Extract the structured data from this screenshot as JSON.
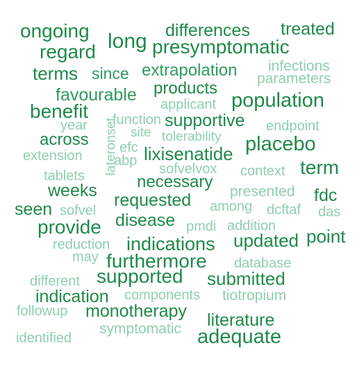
{
  "words": [
    {
      "text": "ongoing",
      "tone": "dark"
    },
    {
      "text": "differences",
      "tone": "dark"
    },
    {
      "text": "treated",
      "tone": "dark"
    },
    {
      "text": "long",
      "tone": "dark"
    },
    {
      "text": "regard",
      "tone": "dark"
    },
    {
      "text": "presymptomatic",
      "tone": "dark"
    },
    {
      "text": "infections",
      "tone": "light"
    },
    {
      "text": "terms",
      "tone": "dark"
    },
    {
      "text": "since",
      "tone": "dark"
    },
    {
      "text": "extrapolation",
      "tone": "dark"
    },
    {
      "text": "parameters",
      "tone": "light"
    },
    {
      "text": "favourable",
      "tone": "dark"
    },
    {
      "text": "products",
      "tone": "dark"
    },
    {
      "text": "applicant",
      "tone": "light"
    },
    {
      "text": "population",
      "tone": "dark"
    },
    {
      "text": "benefit",
      "tone": "dark"
    },
    {
      "text": "function",
      "tone": "light"
    },
    {
      "text": "year",
      "tone": "light"
    },
    {
      "text": "supportive",
      "tone": "dark"
    },
    {
      "text": "endpoint",
      "tone": "light"
    },
    {
      "text": "lateronset",
      "tone": "light"
    },
    {
      "text": "site",
      "tone": "light"
    },
    {
      "text": "tolerability",
      "tone": "light"
    },
    {
      "text": "across",
      "tone": "dark"
    },
    {
      "text": "placebo",
      "tone": "dark"
    },
    {
      "text": "efc",
      "tone": "light"
    },
    {
      "text": "extension",
      "tone": "light"
    },
    {
      "text": "lixisenatide",
      "tone": "dark"
    },
    {
      "text": "abp",
      "tone": "light"
    },
    {
      "text": "term",
      "tone": "dark"
    },
    {
      "text": "sofvelvox",
      "tone": "light"
    },
    {
      "text": "context",
      "tone": "light"
    },
    {
      "text": "tablets",
      "tone": "light"
    },
    {
      "text": "necessary",
      "tone": "dark"
    },
    {
      "text": "weeks",
      "tone": "dark"
    },
    {
      "text": "presented",
      "tone": "light"
    },
    {
      "text": "fdc",
      "tone": "dark"
    },
    {
      "text": "requested",
      "tone": "dark"
    },
    {
      "text": "among",
      "tone": "light"
    },
    {
      "text": "seen",
      "tone": "dark"
    },
    {
      "text": "sofvel",
      "tone": "light"
    },
    {
      "text": "dcftaf",
      "tone": "light"
    },
    {
      "text": "das",
      "tone": "light"
    },
    {
      "text": "disease",
      "tone": "dark"
    },
    {
      "text": "provide",
      "tone": "dark"
    },
    {
      "text": "pmdi",
      "tone": "light"
    },
    {
      "text": "addition",
      "tone": "light"
    },
    {
      "text": "point",
      "tone": "dark"
    },
    {
      "text": "updated",
      "tone": "dark"
    },
    {
      "text": "indications",
      "tone": "dark"
    },
    {
      "text": "reduction",
      "tone": "light"
    },
    {
      "text": "may",
      "tone": "light"
    },
    {
      "text": "furthermore",
      "tone": "dark"
    },
    {
      "text": "database",
      "tone": "light"
    },
    {
      "text": "different",
      "tone": "light"
    },
    {
      "text": "supported",
      "tone": "dark"
    },
    {
      "text": "submitted",
      "tone": "dark"
    },
    {
      "text": "indication",
      "tone": "dark"
    },
    {
      "text": "components",
      "tone": "light"
    },
    {
      "text": "tiotropium",
      "tone": "light"
    },
    {
      "text": "followup",
      "tone": "light"
    },
    {
      "text": "monotherapy",
      "tone": "dark"
    },
    {
      "text": "literature",
      "tone": "dark"
    },
    {
      "text": "symptomatic",
      "tone": "light"
    },
    {
      "text": "identified",
      "tone": "light"
    },
    {
      "text": "adequate",
      "tone": "dark"
    }
  ],
  "colors": {
    "dark": "#1f8a4a",
    "medium": "#2f9a5c",
    "light": "#8fcfae",
    "background": "#ffffff"
  }
}
